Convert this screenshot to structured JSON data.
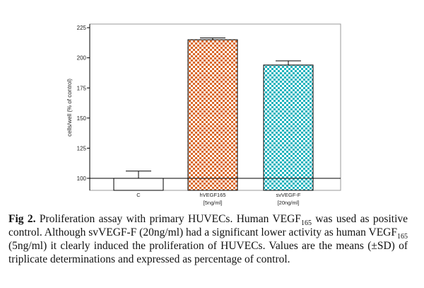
{
  "chart_data": {
    "type": "bar",
    "title": "",
    "xlabel": "",
    "ylabel": "cells/well (% of control)",
    "ylim": [
      90,
      228
    ],
    "yticks": [
      100,
      125,
      150,
      175,
      200,
      225
    ],
    "ytick_labels": [
      "100",
      "125",
      "150",
      "175",
      "200",
      "225"
    ],
    "baseline": 100,
    "grid": false,
    "categories": [
      {
        "label": "C",
        "sublabel": "",
        "value": 100,
        "error": 6,
        "pattern": "none",
        "color": "#ffffff"
      },
      {
        "label": "hVEGF165",
        "sublabel": "[5ng/ml]",
        "value": 215,
        "error": 1.5,
        "pattern": "checker",
        "color": "#d9692a"
      },
      {
        "label": "svVEGF-F",
        "sublabel": "[20ng/ml]",
        "value": 194,
        "error": 3.5,
        "pattern": "checker",
        "color": "#1fb3bd"
      }
    ]
  },
  "caption": {
    "fig_label": "Fig 2.",
    "seg1": " Proliferation assay with primary HUVECs. Human VEGF",
    "sub1": "165",
    "seg2": " was used as positive control. Although svVEGF-F (20ng/ml) had a significant lower activity as human VEGF",
    "sub2": "165",
    "seg3": " (5ng/ml) it clearly induced the proliferation of HUVECs. Values are the means (±SD) of triplicate determinations and expressed as percentage of control."
  }
}
